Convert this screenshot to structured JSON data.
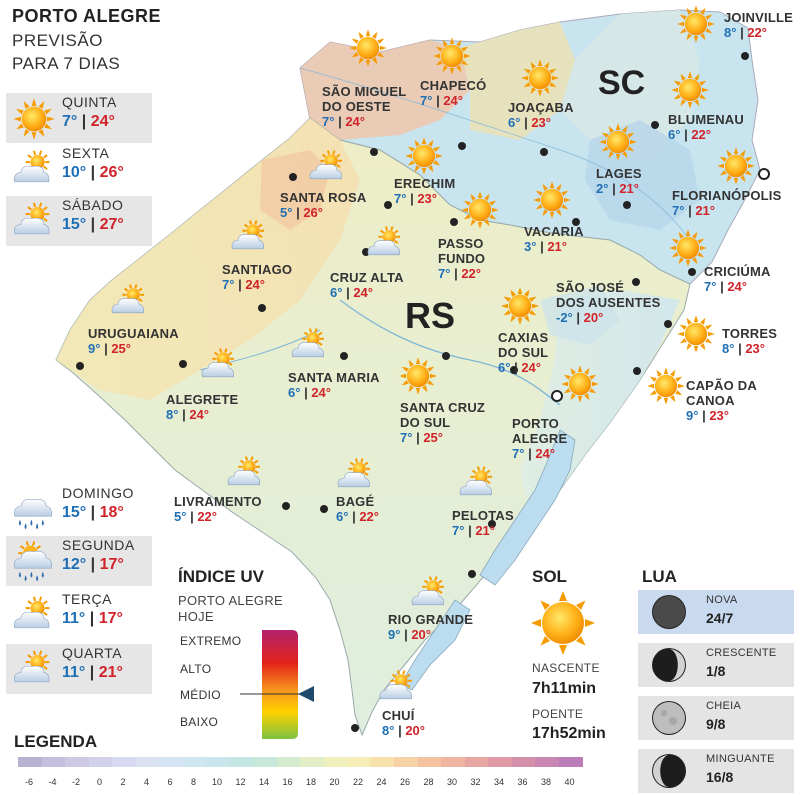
{
  "header": {
    "title": "PORTO ALEGRE",
    "subtitle_1": "PREVISÃO",
    "subtitle_2": "PARA 7 DIAS"
  },
  "forecast": [
    {
      "day": "QUINTA",
      "min": "7°",
      "max": "24°",
      "icon": "sun-icon",
      "highlight": true
    },
    {
      "day": "SEXTA",
      "min": "10°",
      "max": "26°",
      "icon": "partly-cloudy-icon",
      "highlight": false
    },
    {
      "day": "SÁBADO",
      "min": "15°",
      "max": "27°",
      "icon": "partly-cloudy-icon",
      "highlight": true
    },
    {
      "day": "DOMINGO",
      "min": "15°",
      "max": "18°",
      "icon": "rain-icon",
      "highlight": false
    },
    {
      "day": "SEGUNDA",
      "min": "12°",
      "max": "17°",
      "icon": "sun-cloud-rain-icon",
      "highlight": true
    },
    {
      "day": "TERÇA",
      "min": "11°",
      "max": "17°",
      "icon": "partly-cloudy-icon",
      "highlight": false
    },
    {
      "day": "QUARTA",
      "min": "11°",
      "max": "21°",
      "icon": "partly-cloudy-icon",
      "highlight": true
    }
  ],
  "map": {
    "state_rs": "RS",
    "state_sc": "SC",
    "cities": [
      {
        "name": "JOINVILLE",
        "min": "8°",
        "max": "22°",
        "icon": "sun-icon"
      },
      {
        "name": "SÃO MIGUEL\nDO OESTE",
        "min": "7°",
        "max": "24°",
        "icon": "sun-icon"
      },
      {
        "name": "CHAPECÓ",
        "min": "7°",
        "max": "24°",
        "icon": "sun-icon"
      },
      {
        "name": "JOAÇABA",
        "min": "6°",
        "max": "23°",
        "icon": "sun-icon"
      },
      {
        "name": "BLUMENAU",
        "min": "6°",
        "max": "22°",
        "icon": "sun-icon"
      },
      {
        "name": "LAGES",
        "min": "2°",
        "max": "21°",
        "icon": "sun-icon"
      },
      {
        "name": "FLORIANÓPOLIS",
        "min": "7°",
        "max": "21°",
        "icon": "sun-icon"
      },
      {
        "name": "SANTA ROSA",
        "min": "5°",
        "max": "26°",
        "icon": "partly-cloudy-icon"
      },
      {
        "name": "ERECHIM",
        "min": "7°",
        "max": "23°",
        "icon": "sun-icon"
      },
      {
        "name": "VACARIA",
        "min": "3°",
        "max": "21°",
        "icon": "sun-icon"
      },
      {
        "name": "PASSO\nFUNDO",
        "min": "7°",
        "max": "22°",
        "icon": "sun-icon"
      },
      {
        "name": "SANTIAGO",
        "min": "7°",
        "max": "24°",
        "icon": "partly-cloudy-icon"
      },
      {
        "name": "CRUZ ALTA",
        "min": "6°",
        "max": "24°",
        "icon": "partly-cloudy-icon"
      },
      {
        "name": "SÃO JOSÉ\nDOS AUSENTES",
        "min": "-2°",
        "max": "20°",
        "icon": "sun-icon"
      },
      {
        "name": "CRICIÚMA",
        "min": "7°",
        "max": "24°",
        "icon": "sun-icon"
      },
      {
        "name": "URUGUAIANA",
        "min": "9°",
        "max": "25°",
        "icon": "partly-cloudy-icon"
      },
      {
        "name": "TORRES",
        "min": "8°",
        "max": "23°",
        "icon": "sun-icon"
      },
      {
        "name": "CAXIAS\nDO SUL",
        "min": "6°",
        "max": "24°",
        "icon": "sun-icon"
      },
      {
        "name": "SANTA MARIA",
        "min": "6°",
        "max": "24°",
        "icon": "partly-cloudy-icon"
      },
      {
        "name": "ALEGRETE",
        "min": "8°",
        "max": "24°",
        "icon": "partly-cloudy-icon"
      },
      {
        "name": "CAPÃO DA\nCANOA",
        "min": "9°",
        "max": "23°",
        "icon": "sun-icon"
      },
      {
        "name": "SANTA CRUZ\nDO SUL",
        "min": "7°",
        "max": "25°",
        "icon": "sun-icon"
      },
      {
        "name": "PORTO\nALEGRE",
        "min": "7°",
        "max": "24°",
        "icon": "sun-icon"
      },
      {
        "name": "LIVRAMENTO",
        "min": "5°",
        "max": "22°",
        "icon": "partly-cloudy-icon"
      },
      {
        "name": "BAGÉ",
        "min": "6°",
        "max": "22°",
        "icon": "partly-cloudy-icon"
      },
      {
        "name": "PELOTAS",
        "min": "7°",
        "max": "21°",
        "icon": "partly-cloudy-icon"
      },
      {
        "name": "RIO GRANDE",
        "min": "9°",
        "max": "20°",
        "icon": "partly-cloudy-icon"
      },
      {
        "name": "CHUÍ",
        "min": "8°",
        "max": "20°",
        "icon": "partly-cloudy-icon"
      }
    ]
  },
  "uv": {
    "title": "ÍNDICE UV",
    "subtitle_1": "PORTO ALEGRE",
    "subtitle_2": "HOJE",
    "levels": [
      "EXTREMO",
      "ALTO",
      "MÉDIO",
      "BAIXO"
    ],
    "current_level": "MÉDIO"
  },
  "sun": {
    "title": "SOL",
    "sunrise_label": "NASCENTE",
    "sunrise": "7h11min",
    "sunset_label": "POENTE",
    "sunset": "17h52min"
  },
  "moon": {
    "title": "LUA",
    "phases": [
      {
        "name": "NOVA",
        "date": "24/7",
        "icon": "new-moon-icon",
        "highlight": true
      },
      {
        "name": "CRESCENTE",
        "date": "1/8",
        "icon": "crescent-moon-icon",
        "highlight": false
      },
      {
        "name": "CHEIA",
        "date": "9/8",
        "icon": "full-moon-icon",
        "highlight": false
      },
      {
        "name": "MINGUANTE",
        "date": "16/8",
        "icon": "waning-moon-icon",
        "highlight": false
      }
    ]
  },
  "legend": {
    "title": "LEGENDA",
    "values": [
      "-6",
      "-4",
      "-2",
      "0",
      "2",
      "4",
      "6",
      "8",
      "10",
      "12",
      "14",
      "16",
      "18",
      "20",
      "22",
      "24",
      "26",
      "28",
      "30",
      "32",
      "34",
      "36",
      "38",
      "40"
    ],
    "colors": [
      "#b9b3d3",
      "#c3bfdc",
      "#cdc9e3",
      "#d1d1ea",
      "#d6d9ef",
      "#dbe2f2",
      "#d5e4f2",
      "#cfe6f0",
      "#c8e6ec",
      "#c4e6e4",
      "#c8e8da",
      "#d5ebcf",
      "#e3eec6",
      "#f0f0bf",
      "#f6ecb7",
      "#f8e1ad",
      "#f6d2a6",
      "#f3c3a1",
      "#eeb5a0",
      "#e7a6a2",
      "#df9aa6",
      "#d48fab",
      "#c886b2",
      "#bb7db8"
    ]
  }
}
